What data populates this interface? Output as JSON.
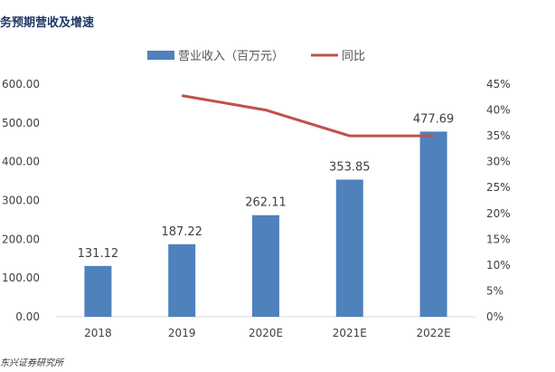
{
  "header": {
    "title": "务预期营收及增速",
    "source": "东兴证券研究所"
  },
  "chart_data": {
    "type": "bar",
    "title": "务预期营收及增速",
    "categories": [
      "2018",
      "2019",
      "2020E",
      "2021E",
      "2022E"
    ],
    "series": [
      {
        "name": "营业收入（百万元）",
        "type": "bar",
        "axis": "left",
        "color": "#4f81bd",
        "values": [
          131.12,
          187.22,
          262.11,
          353.85,
          477.69
        ],
        "data_labels": [
          "131.12",
          "187.22",
          "262.11",
          "353.85",
          "477.69"
        ]
      },
      {
        "name": "同比",
        "type": "line",
        "axis": "right",
        "color": "#c0504d",
        "values": [
          null,
          42.8,
          40.0,
          35.0,
          35.0
        ]
      }
    ],
    "y_left": {
      "ylim": [
        0,
        600
      ],
      "ticks": [
        0,
        100,
        200,
        300,
        400,
        500,
        600
      ],
      "tick_labels": [
        "0.00",
        "100.00",
        "200.00",
        "300.00",
        "400.00",
        "500.00",
        "600.00"
      ]
    },
    "y_right": {
      "ylim": [
        0,
        45
      ],
      "ticks": [
        0,
        5,
        10,
        15,
        20,
        25,
        30,
        35,
        40,
        45
      ],
      "tick_labels": [
        "0%",
        "5%",
        "10%",
        "15%",
        "20%",
        "25%",
        "30%",
        "35%",
        "40%",
        "45%"
      ]
    },
    "grid": false,
    "legend_position": "top"
  }
}
